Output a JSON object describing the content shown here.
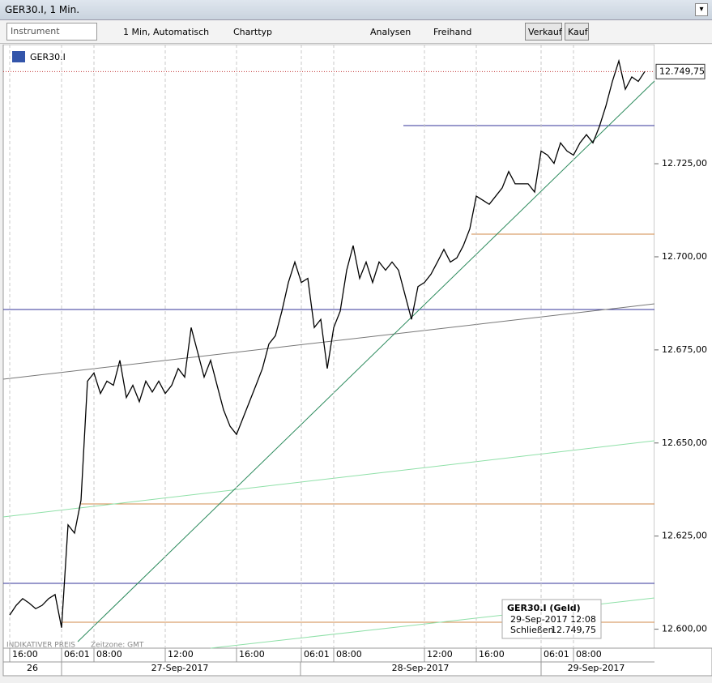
{
  "window": {
    "title": "GER30.I, 1 Min."
  },
  "toolbar": {
    "instrument": "Instrument",
    "interval": "1 Min,  Automatisch",
    "chart_type": "Charttyp",
    "analyses": "Analysen",
    "freehand": "Freihand",
    "sell": "Verkauf",
    "buy": "Kauf"
  },
  "legend": {
    "instrument": "GER30.I"
  },
  "footer": {
    "price_note": "INDIKATIVER PREIS",
    "timezone": "Zeitzone: GMT"
  },
  "dates": [
    "26",
    "27-Sep-2017",
    "28-Sep-2017",
    "29-Sep-2017"
  ],
  "tooltip": {
    "title": "GER30.I (Geld)",
    "time": "29-Sep-2017 12:08",
    "field": "Schließen",
    "value": "12.749,75"
  },
  "chart_data": {
    "type": "line",
    "categories": [
      null,
      "16:00",
      null,
      null,
      null,
      null,
      null,
      null,
      null,
      "06:01",
      null,
      null,
      null,
      null,
      "08:00",
      null,
      null,
      null,
      null,
      null,
      null,
      null,
      null,
      null,
      null,
      "12:00",
      null,
      null,
      null,
      null,
      null,
      null,
      null,
      null,
      null,
      null,
      "16:00",
      null,
      null,
      null,
      null,
      null,
      null,
      null,
      null,
      null,
      "06:01",
      null,
      null,
      null,
      null,
      "08:00",
      null,
      null,
      null,
      null,
      null,
      null,
      null,
      null,
      null,
      null,
      null,
      null,
      null,
      "12:00",
      null,
      null,
      null,
      null,
      null,
      null,
      null,
      "16:00",
      null,
      null,
      null,
      null,
      null,
      null,
      null,
      null,
      null,
      "06:01",
      null,
      null,
      null,
      null,
      "08:00",
      null,
      null,
      null,
      null,
      null,
      null,
      null,
      null,
      null,
      null,
      null
    ],
    "series": [
      {
        "name": "GER30.I",
        "color": "#000000",
        "values": [
          null,
          12603.8,
          12606.4,
          12608.2,
          12607,
          12605.5,
          12606.4,
          12608.2,
          12609.3,
          12600.4,
          12628,
          12625.8,
          12634.6,
          12666.6,
          12668.8,
          12663.3,
          12666.6,
          12665.5,
          12672.2,
          12662.2,
          12665.5,
          12661.1,
          12666.6,
          12663.7,
          12666.6,
          12663.3,
          12665.5,
          12670,
          12667.7,
          12681,
          12674.4,
          12667.7,
          12672.2,
          12665.5,
          12658.9,
          12654.5,
          12652.3,
          12656.7,
          12661.1,
          12665.5,
          12670,
          12676.6,
          12678.8,
          12685.4,
          12693.1,
          12698.6,
          12693.1,
          12694.2,
          12681,
          12683.2,
          12670,
          12681,
          12685.4,
          12696.4,
          12703,
          12694.2,
          12698.6,
          12693.1,
          12698.6,
          12696.4,
          12698.6,
          12696.4,
          12689.8,
          12683.2,
          12692,
          12693.1,
          12695.3,
          12698.6,
          12702,
          12698.6,
          12699.7,
          12703,
          12707.5,
          12716.3,
          12715.2,
          12714.1,
          12716.3,
          12718.5,
          12722.9,
          12719.6,
          12719.6,
          12719.6,
          12717.4,
          12728.4,
          12727.3,
          12725.1,
          12730.6,
          12728.4,
          12727.3,
          12730.6,
          12732.8,
          12730.6,
          12735,
          12740.5,
          12747.1,
          12752.6,
          12745,
          12748.3,
          12747.1,
          12749.75
        ]
      }
    ],
    "last_price": {
      "value": 12749.75,
      "label": "12.749,75"
    },
    "ylim": [
      12594.9,
      12757
    ],
    "yticks": [
      {
        "value": 12600,
        "label": "12.600,00"
      },
      {
        "value": 12625,
        "label": "12.625,00"
      },
      {
        "value": 12650,
        "label": "12.650,00"
      },
      {
        "value": 12675,
        "label": "12.675,00"
      },
      {
        "value": 12700,
        "label": "12.700,00"
      },
      {
        "value": 12725,
        "label": "12.725,00"
      }
    ],
    "grid": true
  }
}
